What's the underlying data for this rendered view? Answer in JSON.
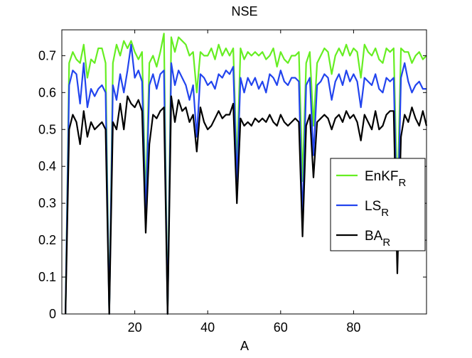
{
  "chart_data": {
    "type": "line",
    "title": "NSE",
    "xlabel": "A",
    "ylabel": "",
    "xlim": [
      0,
      100
    ],
    "ylim": [
      0,
      0.77
    ],
    "xticks": [
      20,
      40,
      60,
      80
    ],
    "yticks": [
      0,
      0.1,
      0.2,
      0.3,
      0.4,
      0.5,
      0.6,
      0.7
    ],
    "ytick_labels": [
      "0",
      "0.1",
      "0.2",
      "0.3",
      "0.4",
      "0.5",
      "0.6",
      "0.7"
    ],
    "grid": false,
    "legend_position": "center-right",
    "x": [
      1,
      2,
      3,
      4,
      5,
      6,
      7,
      8,
      9,
      10,
      11,
      12,
      13,
      14,
      15,
      16,
      17,
      18,
      19,
      20,
      21,
      22,
      23,
      24,
      25,
      26,
      27,
      28,
      29,
      30,
      31,
      32,
      33,
      34,
      35,
      36,
      37,
      38,
      39,
      40,
      41,
      42,
      43,
      44,
      45,
      46,
      47,
      48,
      49,
      50,
      51,
      52,
      53,
      54,
      55,
      56,
      57,
      58,
      59,
      60,
      61,
      62,
      63,
      64,
      65,
      66,
      67,
      68,
      69,
      70,
      71,
      72,
      73,
      74,
      75,
      76,
      77,
      78,
      79,
      80,
      81,
      82,
      83,
      84,
      85,
      86,
      87,
      88,
      89,
      90,
      91,
      92,
      93,
      94,
      95,
      96,
      97,
      98,
      99,
      100
    ],
    "series": [
      {
        "name": "EnKF",
        "name_subscript": "R",
        "color": "#66ee22",
        "values": [
          0.0,
          0.68,
          0.71,
          0.69,
          0.68,
          0.73,
          0.64,
          0.69,
          0.68,
          0.72,
          0.72,
          0.68,
          0.0,
          0.68,
          0.73,
          0.7,
          0.74,
          0.72,
          0.74,
          0.71,
          0.69,
          0.71,
          0.3,
          0.68,
          0.7,
          0.67,
          0.71,
          0.76,
          0.0,
          0.75,
          0.71,
          0.75,
          0.74,
          0.73,
          0.7,
          0.71,
          0.6,
          0.71,
          0.7,
          0.7,
          0.72,
          0.69,
          0.73,
          0.7,
          0.72,
          0.7,
          0.72,
          0.4,
          0.72,
          0.69,
          0.71,
          0.7,
          0.71,
          0.7,
          0.71,
          0.69,
          0.7,
          0.72,
          0.67,
          0.71,
          0.69,
          0.68,
          0.7,
          0.7,
          0.71,
          0.36,
          0.68,
          0.71,
          0.51,
          0.68,
          0.7,
          0.72,
          0.71,
          0.65,
          0.7,
          0.72,
          0.7,
          0.73,
          0.7,
          0.72,
          0.71,
          0.64,
          0.73,
          0.71,
          0.7,
          0.72,
          0.69,
          0.68,
          0.72,
          0.71,
          0.72,
          0.3,
          0.72,
          0.71,
          0.71,
          0.68,
          0.7,
          0.71,
          0.69,
          0.7
        ]
      },
      {
        "name": "LS",
        "name_subscript": "R",
        "color": "#2244ee",
        "values": [
          0.0,
          0.62,
          0.66,
          0.65,
          0.57,
          0.68,
          0.56,
          0.61,
          0.59,
          0.61,
          0.62,
          0.6,
          0.0,
          0.62,
          0.58,
          0.65,
          0.6,
          0.66,
          0.73,
          0.64,
          0.66,
          0.63,
          0.26,
          0.62,
          0.65,
          0.61,
          0.65,
          0.66,
          0.0,
          0.68,
          0.62,
          0.66,
          0.64,
          0.62,
          0.58,
          0.62,
          0.48,
          0.65,
          0.64,
          0.62,
          0.63,
          0.61,
          0.65,
          0.64,
          0.66,
          0.65,
          0.67,
          0.36,
          0.64,
          0.6,
          0.64,
          0.62,
          0.64,
          0.61,
          0.63,
          0.6,
          0.65,
          0.64,
          0.62,
          0.66,
          0.63,
          0.62,
          0.64,
          0.64,
          0.63,
          0.25,
          0.62,
          0.64,
          0.43,
          0.62,
          0.63,
          0.65,
          0.64,
          0.58,
          0.63,
          0.65,
          0.62,
          0.66,
          0.63,
          0.65,
          0.63,
          0.56,
          0.64,
          0.63,
          0.62,
          0.65,
          0.61,
          0.6,
          0.64,
          0.63,
          0.64,
          0.22,
          0.64,
          0.68,
          0.63,
          0.6,
          0.62,
          0.63,
          0.61,
          0.61
        ]
      },
      {
        "name": "BA",
        "name_subscript": "R",
        "color": "#000000",
        "values": [
          0.0,
          0.5,
          0.54,
          0.52,
          0.46,
          0.55,
          0.48,
          0.52,
          0.5,
          0.51,
          0.52,
          0.5,
          0.0,
          0.52,
          0.5,
          0.57,
          0.5,
          0.59,
          0.57,
          0.56,
          0.58,
          0.55,
          0.22,
          0.46,
          0.54,
          0.53,
          0.55,
          0.56,
          0.0,
          0.59,
          0.52,
          0.58,
          0.55,
          0.56,
          0.52,
          0.54,
          0.44,
          0.56,
          0.52,
          0.5,
          0.51,
          0.53,
          0.55,
          0.53,
          0.54,
          0.54,
          0.57,
          0.3,
          0.53,
          0.51,
          0.52,
          0.51,
          0.53,
          0.52,
          0.53,
          0.52,
          0.54,
          0.52,
          0.51,
          0.54,
          0.52,
          0.51,
          0.52,
          0.53,
          0.52,
          0.21,
          0.51,
          0.54,
          0.37,
          0.52,
          0.53,
          0.54,
          0.53,
          0.5,
          0.53,
          0.54,
          0.52,
          0.55,
          0.53,
          0.54,
          0.52,
          0.47,
          0.54,
          0.52,
          0.5,
          0.55,
          0.5,
          0.51,
          0.54,
          0.55,
          0.55,
          0.11,
          0.48,
          0.54,
          0.52,
          0.56,
          0.53,
          0.51,
          0.55,
          0.51
        ]
      }
    ]
  }
}
